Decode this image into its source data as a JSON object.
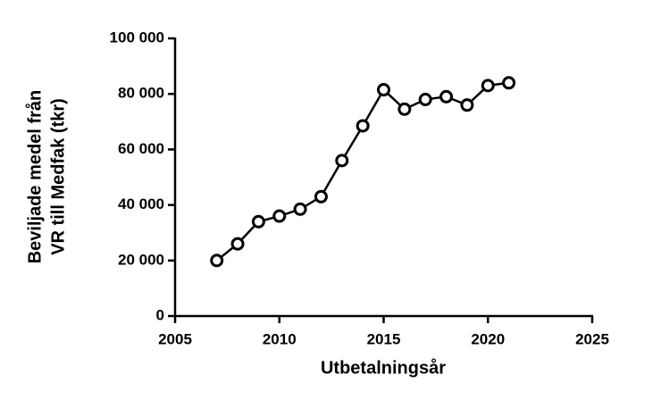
{
  "chart_data": {
    "type": "line",
    "x_label": "Utbetalningsår",
    "y_label": [
      "Beviljade medel från",
      "VR till Medfak (tkr)"
    ],
    "x": [
      2007,
      2008,
      2009,
      2010,
      2011,
      2012,
      2013,
      2014,
      2015,
      2016,
      2017,
      2018,
      2019,
      2020,
      2021
    ],
    "series": [
      {
        "color": "#000000",
        "values": [
          20000,
          26000,
          34000,
          36000,
          38500,
          43000,
          56000,
          68500,
          81500,
          74500,
          78000,
          79000,
          76000,
          83000,
          84000
        ]
      }
    ],
    "xlim": [
      2005,
      2025
    ],
    "xticks": [
      2005,
      2010,
      2015,
      2020,
      2025
    ],
    "ylim": [
      0,
      100000
    ],
    "yticks": [
      0,
      {
        "value": 20000,
        "label": "20 000"
      },
      {
        "value": 40000,
        "label": "40 000"
      },
      {
        "value": 60000,
        "label": "60 000"
      },
      {
        "value": 80000,
        "label": "80 000"
      },
      {
        "value": 100000,
        "label": "100 000"
      }
    ],
    "grid": false
  }
}
